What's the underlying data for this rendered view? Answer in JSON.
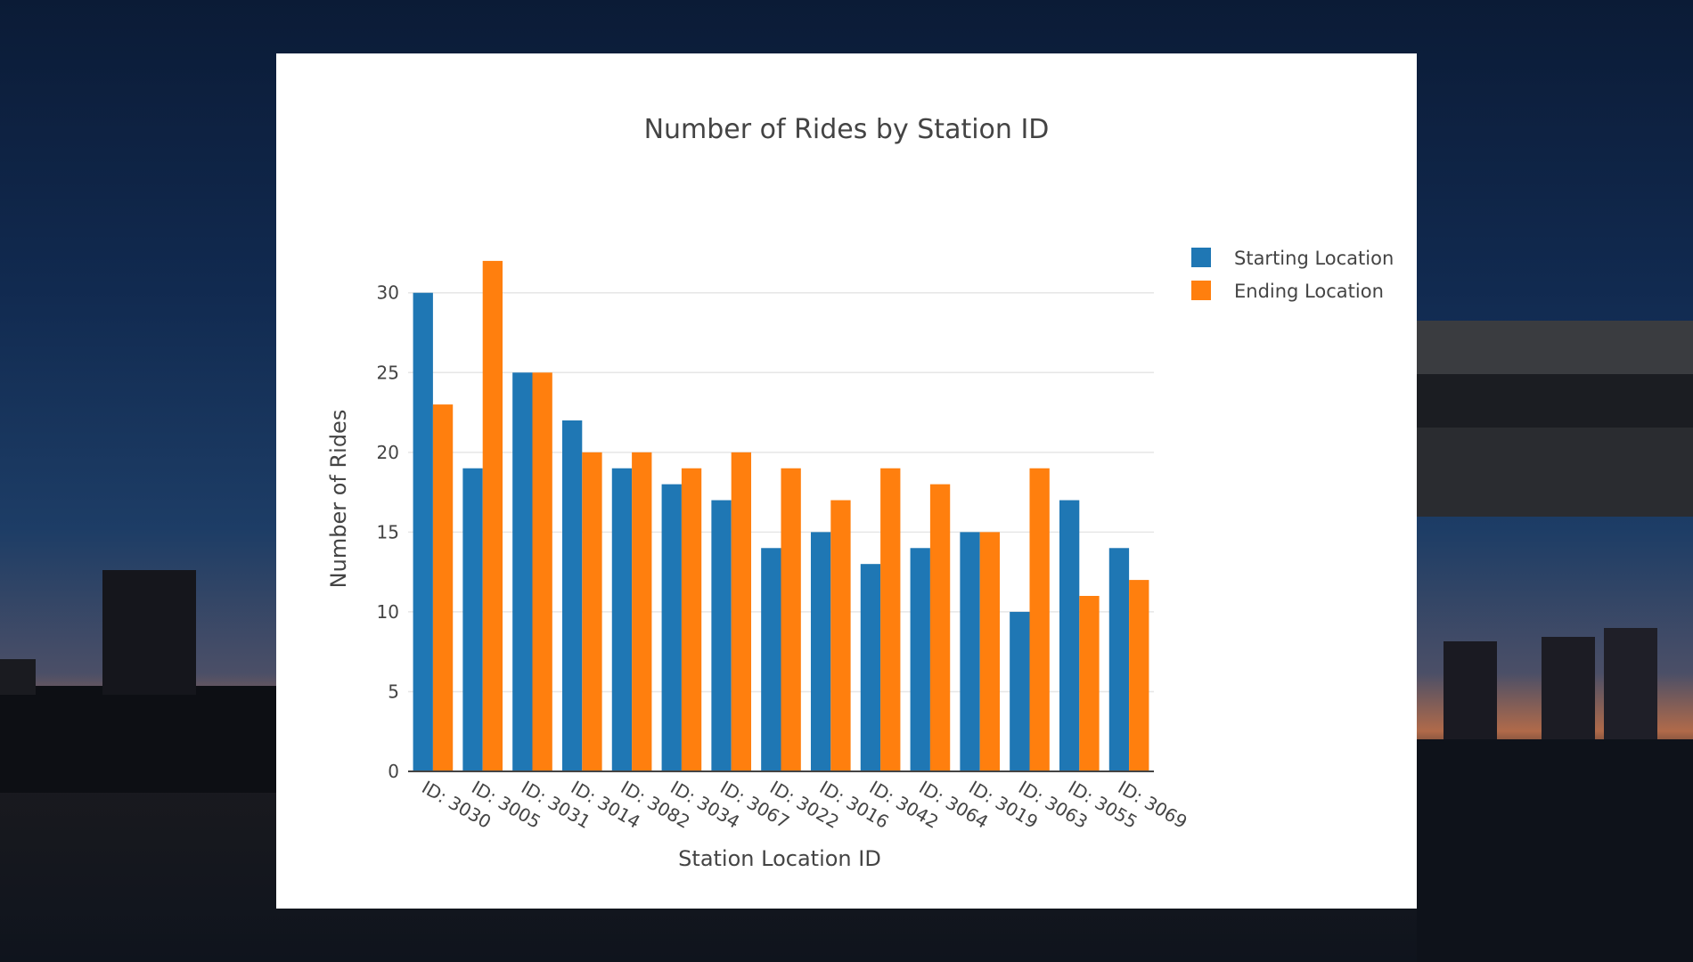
{
  "chart_data": {
    "type": "bar",
    "title": "Number of Rides by Station ID",
    "xlabel": "Station Location ID",
    "ylabel": "Number of Rides",
    "ylim": [
      0,
      33
    ],
    "yticks": [
      0,
      5,
      10,
      15,
      20,
      25,
      30
    ],
    "grid": true,
    "legend_placement": "top-right",
    "categories": [
      "ID: 3030",
      "ID: 3005",
      "ID: 3031",
      "ID: 3014",
      "ID: 3082",
      "ID: 3034",
      "ID: 3067",
      "ID: 3022",
      "ID: 3016",
      "ID: 3042",
      "ID: 3064",
      "ID: 3019",
      "ID: 3063",
      "ID: 3055",
      "ID: 3069"
    ],
    "series": [
      {
        "name": "Starting Location",
        "color": "#1f77b4",
        "values": [
          30,
          19,
          25,
          22,
          19,
          18,
          17,
          14,
          15,
          13,
          14,
          15,
          10,
          17,
          14
        ]
      },
      {
        "name": "Ending Location",
        "color": "#ff7f0e",
        "values": [
          23,
          32,
          25,
          20,
          20,
          19,
          20,
          19,
          17,
          19,
          18,
          15,
          19,
          11,
          12
        ]
      }
    ]
  }
}
